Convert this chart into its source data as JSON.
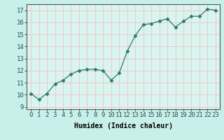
{
  "x": [
    0,
    1,
    2,
    3,
    4,
    5,
    6,
    7,
    8,
    9,
    10,
    11,
    12,
    13,
    14,
    15,
    16,
    17,
    18,
    19,
    20,
    21,
    22,
    23
  ],
  "y": [
    10.1,
    9.6,
    10.1,
    10.9,
    11.2,
    11.7,
    12.0,
    12.1,
    12.1,
    12.0,
    11.2,
    11.8,
    13.6,
    14.9,
    15.8,
    15.9,
    16.1,
    16.3,
    15.6,
    16.1,
    16.5,
    16.5,
    17.1,
    17.0
  ],
  "line_color": "#2a7a6a",
  "marker": "D",
  "markersize": 2.5,
  "bg_color": "#c8f0ea",
  "plot_bg_color": "#d8f5f0",
  "grid_color": "#f0c8c8",
  "xlabel": "Humidex (Indice chaleur)",
  "ylim": [
    8.8,
    17.5
  ],
  "xlim": [
    -0.5,
    23.5
  ],
  "yticks": [
    9,
    10,
    11,
    12,
    13,
    14,
    15,
    16,
    17
  ],
  "xticks": [
    0,
    1,
    2,
    3,
    4,
    5,
    6,
    7,
    8,
    9,
    10,
    11,
    12,
    13,
    14,
    15,
    16,
    17,
    18,
    19,
    20,
    21,
    22,
    23
  ],
  "label_fontsize": 7,
  "tick_fontsize": 6.5
}
